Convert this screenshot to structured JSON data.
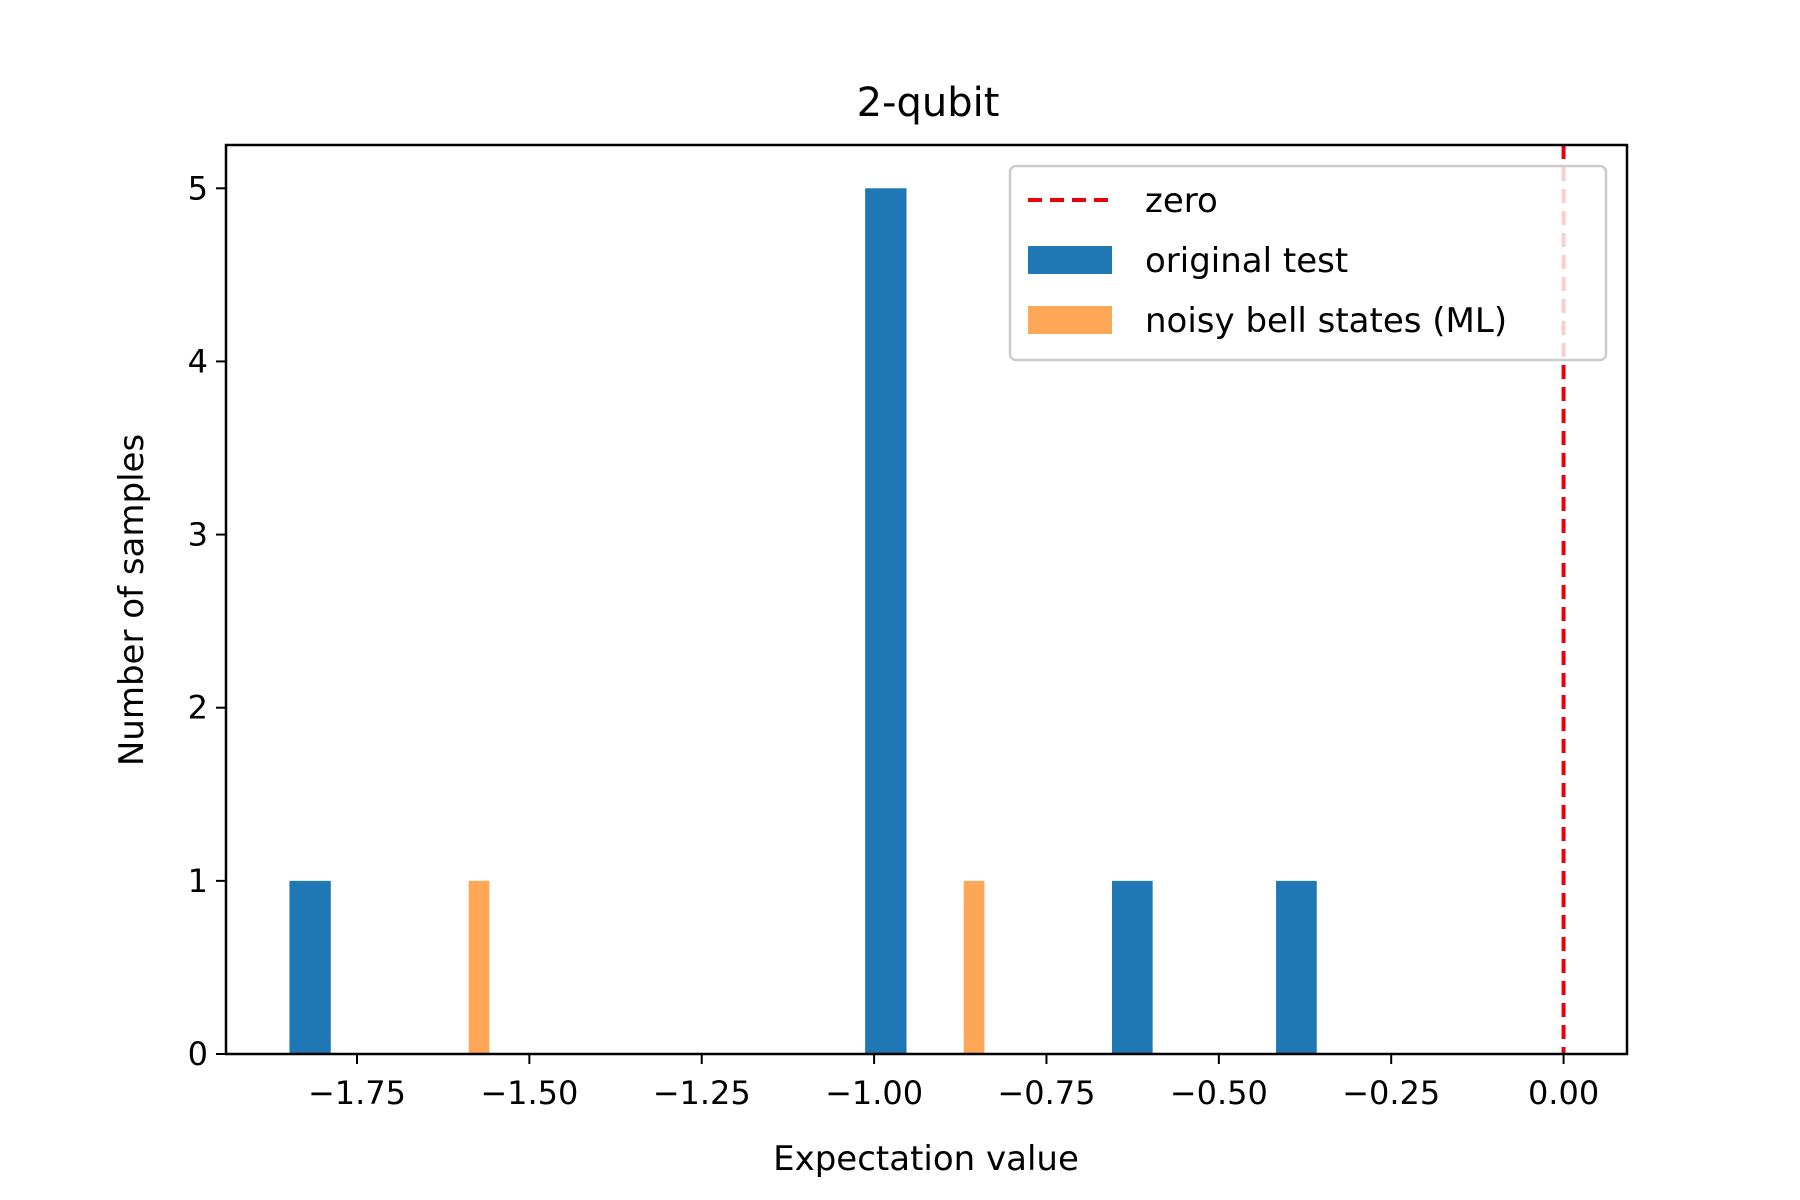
{
  "chart_data": {
    "type": "bar",
    "title": "2-qubit",
    "xlabel": "Expectation value",
    "ylabel": "Number of samples",
    "xlim": [
      -1.94,
      0.092
    ],
    "ylim": [
      0,
      5.25
    ],
    "xticks": [
      -1.75,
      -1.5,
      -1.25,
      -1.0,
      -0.75,
      -0.5,
      -0.25,
      0.0
    ],
    "xtick_labels": [
      "−1.75",
      "−1.50",
      "−1.25",
      "−1.00",
      "−0.75",
      "−0.50",
      "−0.25",
      "0.00"
    ],
    "yticks": [
      0,
      1,
      2,
      3,
      4,
      5
    ],
    "ytick_labels": [
      "0",
      "1",
      "2",
      "3",
      "4",
      "5"
    ],
    "grid": false,
    "legend_position": "top-right",
    "series": [
      {
        "name": "original test",
        "color": "#1f77b4",
        "bars": [
          {
            "x0": -1.848,
            "x1": -1.788,
            "count": 1
          },
          {
            "x0": -1.013,
            "x1": -0.953,
            "count": 5
          },
          {
            "x0": -0.655,
            "x1": -0.596,
            "count": 1
          },
          {
            "x0": -0.417,
            "x1": -0.358,
            "count": 1
          }
        ]
      },
      {
        "name": "noisy bell states (ML)",
        "color": "#ffa657",
        "bars": [
          {
            "x0": -1.588,
            "x1": -1.558,
            "count": 1
          },
          {
            "x0": -0.87,
            "x1": -0.84,
            "count": 1
          }
        ]
      }
    ],
    "reference_lines": [
      {
        "name": "zero",
        "x": 0.0,
        "color": "#e8000b",
        "style": "dashed"
      }
    ]
  }
}
